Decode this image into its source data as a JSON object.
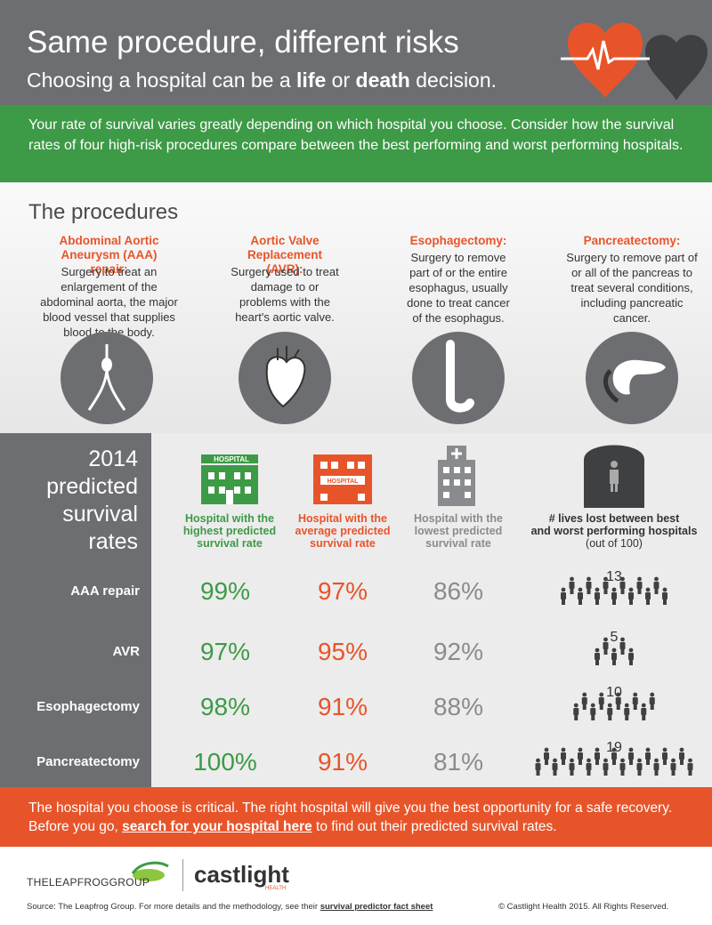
{
  "header": {
    "title": "Same procedure, different risks",
    "subtitle": {
      "before": "Choosing a hospital can be a ",
      "bold_1": "life",
      "middle": " or ",
      "bold_2": "death",
      "after": " decision."
    }
  },
  "intro": "Your rate of survival varies greatly depending on which hospital you choose. Consider how the survival rates of four high-risk procedures compare between the best performing and worst performing hospitals.",
  "procedures": {
    "title": "The procedures",
    "items": [
      {
        "name": "Abdominal Aortic Aneurysm (AAA) repair:",
        "description": "Surgery to treat an enlargement of the abdominal aorta, the major blood vessel that supplies blood to the body."
      },
      {
        "name": "Aortic Valve Replacement (AVR):",
        "description": "Surgery used to treat damage to or problems with the heart's aortic valve."
      },
      {
        "name": "Esophagectomy:",
        "description": "Surgery to remove part of or the entire esophagus, usually done to treat cancer of the esophagus."
      },
      {
        "name": "Pancreatectomy:",
        "description": "Surgery to remove part of or all of the pancreas to treat several conditions, including pancreatic cancer."
      }
    ]
  },
  "survival": {
    "title": [
      "2014",
      "predicted",
      "survival",
      "rates"
    ],
    "icon_text": "HOSPITAL",
    "columns": [
      {
        "label": [
          "Hospital with the",
          "highest predicted",
          "survival rate"
        ]
      },
      {
        "label": [
          "Hospital with the",
          "average predicted",
          "survival rate"
        ]
      },
      {
        "label": [
          "Hospital with the",
          "lowest predicted",
          "survival rate"
        ]
      },
      {
        "label": [
          "# lives lost between best",
          "and worst performing hospitals"
        ],
        "note": "(out of 100)"
      }
    ],
    "rows": [
      {
        "procedure": "AAA repair",
        "highest": "99%",
        "average": "97%",
        "lowest": "86%",
        "lives_lost": 13
      },
      {
        "procedure": "AVR",
        "highest": "97%",
        "average": "95%",
        "lowest": "92%",
        "lives_lost": 5
      },
      {
        "procedure": "Esophagectomy",
        "highest": "98%",
        "average": "91%",
        "lowest": "88%",
        "lives_lost": 10
      },
      {
        "procedure": "Pancreatectomy",
        "highest": "100%",
        "average": "91%",
        "lowest": "81%",
        "lives_lost": 19
      }
    ]
  },
  "callout": {
    "before": "The hospital you choose is critical. The right hospital will give you the best opportunity for a safe recovery. Before you go, ",
    "link": "search for your hospital here",
    "after": " to find out their predicted survival rates."
  },
  "footer": {
    "leapfrog": "THELEAPFROGGROUP",
    "castlight": "castlight",
    "castlight_sub": "HEALTH",
    "source": {
      "before": "Source: The Leapfrog Group. For more details and the methodology, see their ",
      "link": "survival predictor fact sheet"
    },
    "copyright": "© Castlight Health 2015. All Rights Reserved."
  }
}
